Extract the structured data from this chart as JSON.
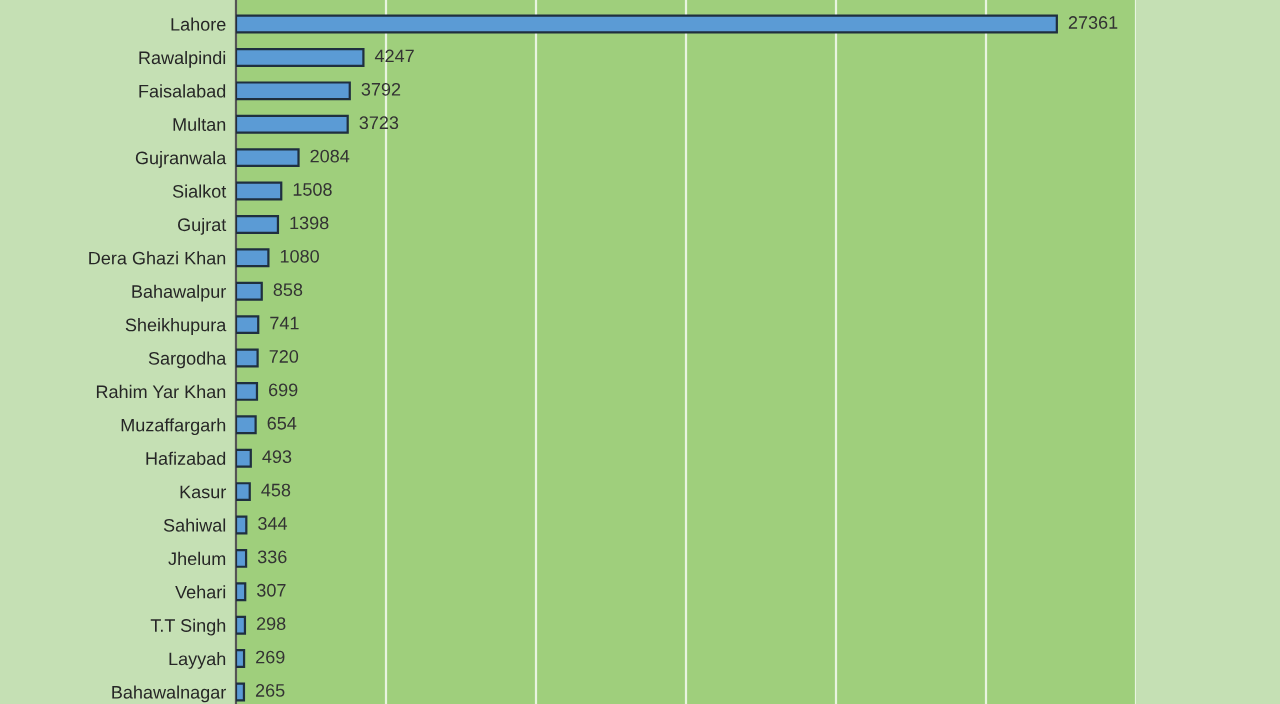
{
  "chart_data": {
    "type": "bar",
    "orientation": "horizontal",
    "categories": [
      "Lahore",
      "Rawalpindi",
      "Faisalabad",
      "Multan",
      "Gujranwala",
      "Sialkot",
      "Gujrat",
      "Dera Ghazi Khan",
      "Bahawalpur",
      "Sheikhupura",
      "Sargodha",
      "Rahim Yar Khan",
      "Muzaffargarh",
      "Hafizabad",
      "Kasur",
      "Sahiwal",
      "Jhelum",
      "Vehari",
      "T.T Singh",
      "Layyah",
      "Bahawalnagar"
    ],
    "values": [
      27361,
      4247,
      3792,
      3723,
      2084,
      1508,
      1398,
      1080,
      858,
      741,
      720,
      699,
      654,
      493,
      458,
      344,
      336,
      307,
      298,
      269,
      265
    ],
    "color": "#5b9bd5",
    "xlim": [
      0,
      30000
    ],
    "xticks": [
      {
        "value": 0,
        "label": null
      },
      {
        "value": 5000,
        "label": null
      },
      {
        "value": 10000,
        "label": null
      },
      {
        "value": 15000,
        "label": null
      },
      {
        "value": 20000,
        "label": null
      },
      {
        "value": 25000,
        "label": null
      },
      {
        "value": 30000,
        "label": null
      }
    ],
    "grid": "x",
    "data_labels": true,
    "tick_labels": "y"
  }
}
